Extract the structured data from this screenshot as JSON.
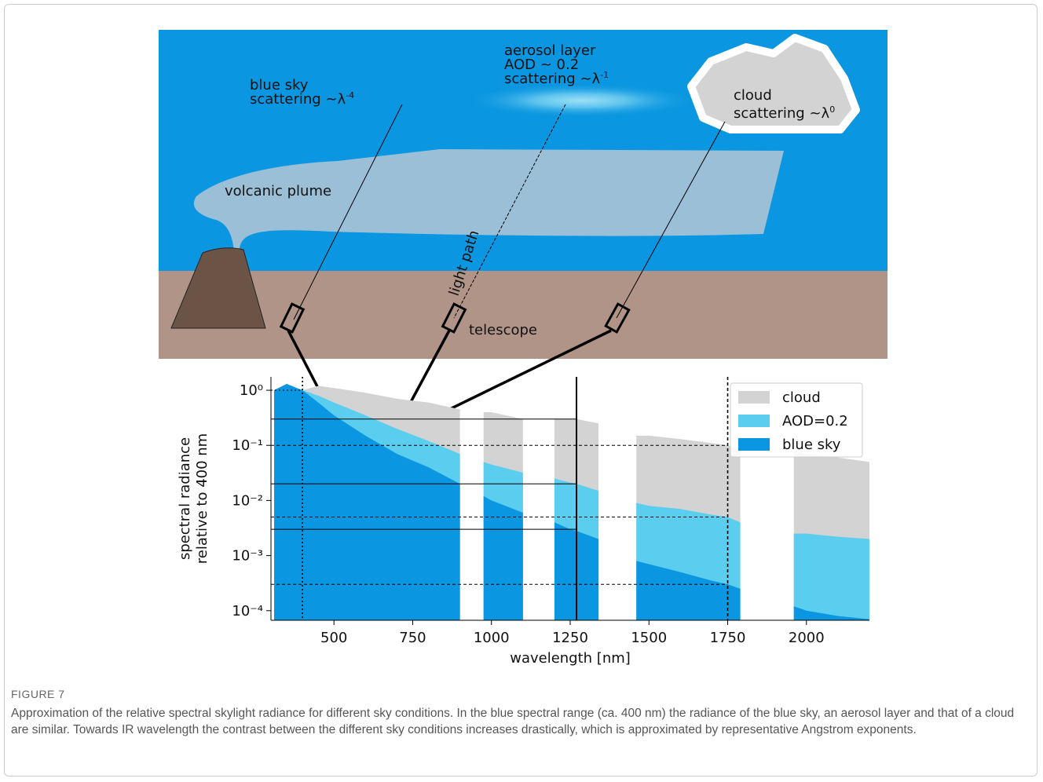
{
  "diagram": {
    "blue_sky": {
      "line1": "blue sky",
      "line2": "scattering ~λ",
      "exponent": "-4"
    },
    "aerosol": {
      "line1": "aerosol layer",
      "line2": "AOD ~ 0.2",
      "line3": "scattering ~λ",
      "exponent": "-1"
    },
    "cloud": {
      "line1": "cloud",
      "line2": "scattering ~λ",
      "exponent": "0"
    },
    "plume": "volcanic plume",
    "light_path": "light path",
    "telescope": "telescope"
  },
  "chart_data": {
    "type": "area",
    "xlabel": "wavelength [nm]",
    "ylabel": [
      "spectral radiance",
      "relative to 400 nm"
    ],
    "log_y": true,
    "x": [
      310,
      350,
      400,
      450,
      500,
      600,
      700,
      800,
      900,
      925,
      950,
      975,
      1000,
      1100,
      1120,
      1150,
      1200,
      1250,
      1270,
      1340,
      1360,
      1440,
      1460,
      1500,
      1600,
      1700,
      1750,
      1790,
      1810,
      1940,
      1960,
      2000,
      2100,
      2200
    ],
    "series": [
      {
        "name": "cloud",
        "color": "#d3d3d3",
        "values": [
          1.0,
          1.3,
          1.0,
          1.2,
          1.1,
          0.9,
          0.7,
          0.6,
          0.45,
          null,
          null,
          0.4,
          0.4,
          0.3,
          null,
          null,
          0.3,
          0.3,
          0.3,
          0.25,
          null,
          null,
          0.15,
          0.15,
          0.13,
          0.11,
          0.1,
          0.08,
          null,
          null,
          0.08,
          0.07,
          0.06,
          0.05
        ]
      },
      {
        "name": "AOD=0.2",
        "color": "#5bcdee",
        "values": [
          1.0,
          1.3,
          1.0,
          0.8,
          0.6,
          0.35,
          0.2,
          0.12,
          0.07,
          null,
          null,
          0.05,
          0.045,
          0.032,
          null,
          null,
          0.025,
          0.021,
          0.02,
          0.015,
          null,
          null,
          0.009,
          0.008,
          0.007,
          0.0055,
          0.005,
          0.004,
          null,
          null,
          0.0025,
          0.0025,
          0.0022,
          0.002
        ]
      },
      {
        "name": "blue sky",
        "color": "#0a96e0",
        "values": [
          1.0,
          1.3,
          1.0,
          0.6,
          0.35,
          0.15,
          0.07,
          0.04,
          0.02,
          null,
          null,
          0.012,
          0.01,
          0.006,
          null,
          null,
          0.004,
          0.003,
          0.0028,
          0.002,
          null,
          null,
          0.0008,
          0.0007,
          0.0005,
          0.00035,
          0.0003,
          0.00025,
          null,
          null,
          0.00012,
          0.0001,
          8e-05,
          7e-05
        ]
      }
    ],
    "xlim": [
      300,
      2200
    ],
    "xticks": [
      500,
      750,
      1000,
      1250,
      1500,
      1750,
      2000
    ],
    "ylim": [
      6.7e-05,
      1.75
    ],
    "yticks": [
      {
        "value": 0.0001,
        "label": "10⁻⁴"
      },
      {
        "value": 0.001,
        "label": "10⁻³"
      },
      {
        "value": 0.01,
        "label": "10⁻²"
      },
      {
        "value": 0.1,
        "label": "10⁻¹"
      },
      {
        "value": 1,
        "label": "10⁰"
      }
    ],
    "hlines": [
      {
        "y": 1,
        "x_end": 400,
        "style": "dotted"
      },
      {
        "y": 0.3,
        "x_end": 1270,
        "style": "solid"
      },
      {
        "y": 0.1,
        "x_end": 1750,
        "style": "dashed"
      },
      {
        "y": 0.02,
        "x_end": 1270,
        "style": "solid"
      },
      {
        "y": 0.005,
        "x_end": 1750,
        "style": "dashed"
      },
      {
        "y": 0.003,
        "x_end": 1270,
        "style": "solid"
      },
      {
        "y": 0.0003,
        "x_end": 1750,
        "style": "dashed"
      }
    ],
    "vlines": [
      {
        "x": 400,
        "style": "dotted"
      },
      {
        "x": 1270,
        "style": "solid"
      },
      {
        "x": 1750,
        "style": "dashed"
      }
    ],
    "legend": "upper right"
  },
  "caption": {
    "label": "FIGURE 7",
    "text": "Approximation of the relative spectral skylight radiance for different sky conditions. In the blue spectral range (ca. 400 nm) the radiance of the blue sky, an aerosol layer and that of a cloud are similar. Towards IR wavelength the contrast between the different sky conditions increases drastically, which is approximated by representative Angstrom exponents."
  }
}
